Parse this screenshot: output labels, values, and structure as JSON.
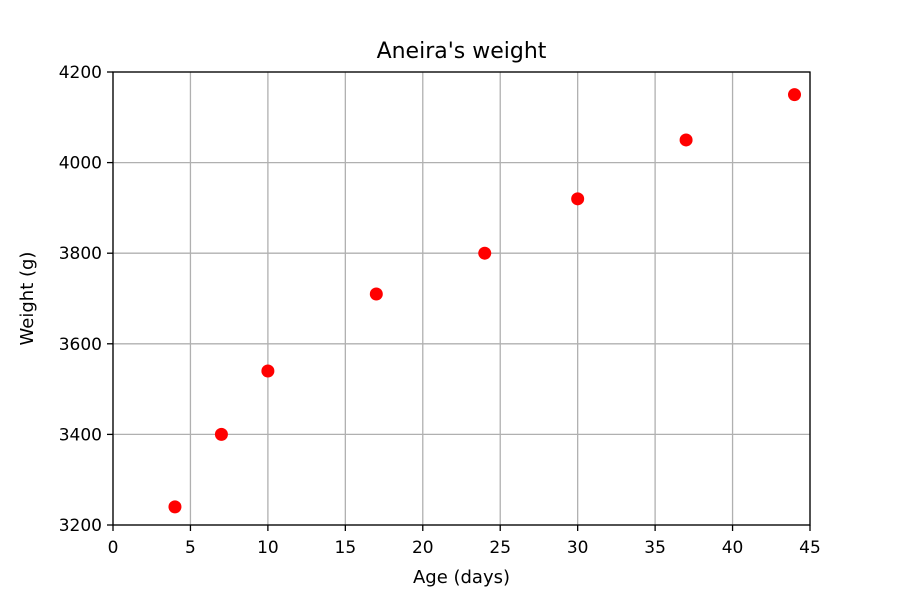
{
  "chart_data": {
    "type": "scatter",
    "title": "Aneira's weight",
    "xlabel": "Age (days)",
    "ylabel": "Weight (g)",
    "xlim": [
      0,
      45
    ],
    "ylim": [
      3200,
      4200
    ],
    "xticks": [
      0,
      5,
      10,
      15,
      20,
      25,
      30,
      35,
      40,
      45
    ],
    "yticks": [
      3200,
      3400,
      3600,
      3800,
      4000,
      4200
    ],
    "grid": true,
    "series": [
      {
        "color": "#ff0000",
        "marker": "circle",
        "points": [
          {
            "x": 4,
            "y": 3240
          },
          {
            "x": 7,
            "y": 3400
          },
          {
            "x": 10,
            "y": 3540
          },
          {
            "x": 17,
            "y": 3710
          },
          {
            "x": 24,
            "y": 3800
          },
          {
            "x": 30,
            "y": 3920
          },
          {
            "x": 37,
            "y": 4050
          },
          {
            "x": 44,
            "y": 4150
          }
        ]
      }
    ],
    "colors": {
      "grid": "#b0b0b0",
      "axis": "#000000",
      "background": "#ffffff"
    }
  }
}
